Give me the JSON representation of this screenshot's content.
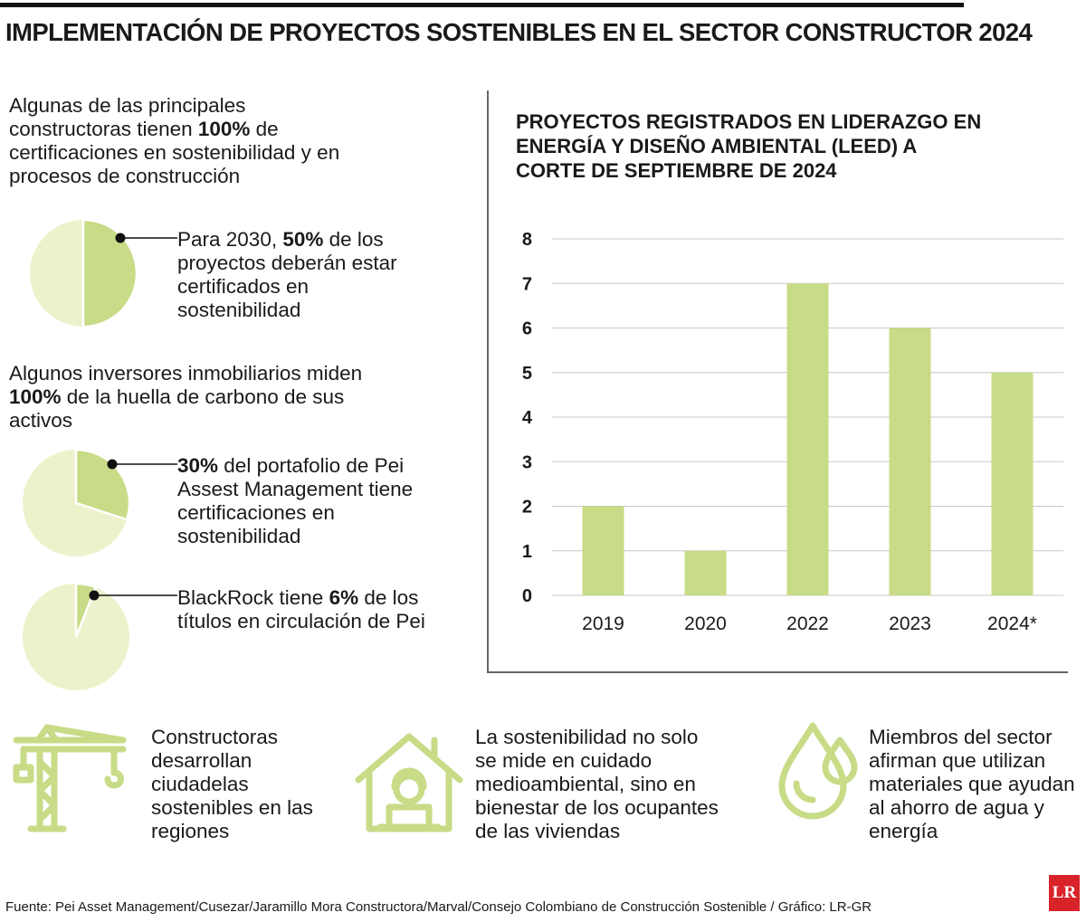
{
  "title": "IMPLEMENTACIÓN DE PROYECTOS SOSTENIBLES EN EL SECTOR CONSTRUCTOR 2024",
  "colors": {
    "accent": "#c8db86",
    "light": "#eef2cc",
    "ink": "#1a1a1a",
    "brand": "#d8232a"
  },
  "left": {
    "intro1": {
      "pre": "Algunas de las principales constructoras tienen ",
      "bold": "100%",
      "post": " de certificaciones en sostenibilidad y en procesos de construcción"
    },
    "pie1": {
      "percent": 50,
      "pre": "Para 2030, ",
      "bold": "50%",
      "post": " de los proyectos deberán estar certificados en sostenibilidad"
    },
    "intro2": {
      "pre": "Algunos inversores inmobiliarios miden ",
      "bold": "100%",
      "post": " de la huella de carbono de sus activos"
    },
    "pie2": {
      "percent": 30,
      "pre": "",
      "bold": "30%",
      "post": " del portafolio de Pei Assest Management tiene certificaciones en sostenibilidad"
    },
    "pie3": {
      "percent": 6,
      "pre": "BlackRock tiene ",
      "bold": "6%",
      "post": " de los títulos en circulación de Pei"
    }
  },
  "chart_data": {
    "type": "bar",
    "title": "PROYECTOS REGISTRADOS EN LIDERAZGO EN ENERGÍA Y DISEÑO AMBIENTAL (LEED) A CORTE DE SEPTIEMBRE DE 2024",
    "categories": [
      "2019",
      "2020",
      "2022",
      "2023",
      "2024*"
    ],
    "values": [
      2,
      1,
      7,
      6,
      5
    ],
    "yticks": [
      "0",
      "1",
      "2",
      "3",
      "4",
      "5",
      "6",
      "7",
      "8"
    ],
    "ylim": [
      0,
      8
    ],
    "xlabel": "",
    "ylabel": "",
    "grid": true
  },
  "bottom": {
    "item1": {
      "icon": "construction-crane-icon",
      "text": "Constructoras desarrollan ciudadelas sostenibles en las regiones"
    },
    "item2": {
      "icon": "house-worker-icon",
      "text": "La sostenibilidad no solo se mide en cuidado medioambiental, sino en bienestar de los ocupantes de las viviendas"
    },
    "item3": {
      "icon": "water-drops-icon",
      "text": "Miembros del sector afirman que utilizan materiales que ayudan al ahorro de agua y energía"
    }
  },
  "source": "Fuente: Pei Asset Management/Cusezar/Jaramillo Mora Constructora/Marval/Consejo Colombiano de Construcción Sostenible / Gráfico: LR-GR",
  "logo": "LR"
}
